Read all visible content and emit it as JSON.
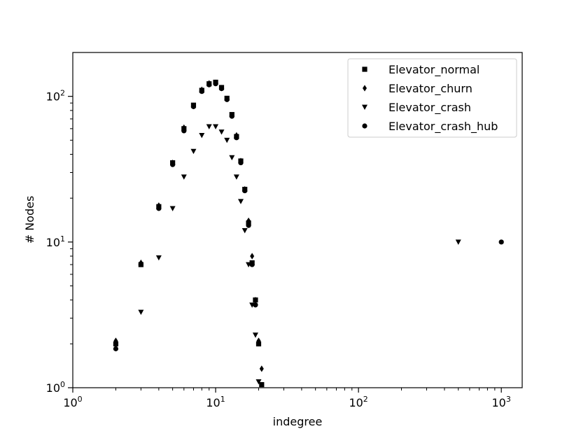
{
  "chart_data": {
    "type": "scatter",
    "xlabel": "indegree",
    "ylabel": "# Nodes",
    "xscale": "log",
    "yscale": "log",
    "xlim": [
      1,
      1400
    ],
    "ylim": [
      1,
      200
    ],
    "x_ticks": [
      {
        "value": 1,
        "base": "10",
        "exp": "0"
      },
      {
        "value": 10,
        "base": "10",
        "exp": "1"
      },
      {
        "value": 100,
        "base": "10",
        "exp": "2"
      },
      {
        "value": 1000,
        "base": "10",
        "exp": "3"
      }
    ],
    "y_ticks": [
      {
        "value": 1,
        "base": "10",
        "exp": "0"
      },
      {
        "value": 10,
        "base": "10",
        "exp": "1"
      },
      {
        "value": 100,
        "base": "10",
        "exp": "2"
      }
    ],
    "grid": false,
    "legend_position": "top-right",
    "series": [
      {
        "name": "Elevator_normal",
        "marker": "square",
        "color": "#000000",
        "points": [
          [
            2,
            2.0
          ],
          [
            3,
            7.0
          ],
          [
            4,
            17.5
          ],
          [
            5,
            35
          ],
          [
            6,
            60
          ],
          [
            7,
            87
          ],
          [
            8,
            110
          ],
          [
            9,
            122
          ],
          [
            10,
            125
          ],
          [
            11,
            115
          ],
          [
            12,
            97
          ],
          [
            13,
            75
          ],
          [
            14,
            53
          ],
          [
            15,
            36
          ],
          [
            16,
            23
          ],
          [
            17,
            13.5
          ],
          [
            18,
            7.2
          ],
          [
            19,
            4.0
          ],
          [
            20,
            2.0
          ],
          [
            21,
            1.05
          ]
        ]
      },
      {
        "name": "Elevator_churn",
        "marker": "diamond",
        "color": "#000000",
        "points": [
          [
            2,
            2.1
          ],
          [
            3,
            7.2
          ],
          [
            4,
            17.8
          ],
          [
            5,
            35
          ],
          [
            6,
            61
          ],
          [
            7,
            86
          ],
          [
            8,
            111
          ],
          [
            9,
            123
          ],
          [
            10,
            124
          ],
          [
            11,
            114
          ],
          [
            12,
            96
          ],
          [
            13,
            74
          ],
          [
            14,
            54
          ],
          [
            15,
            36
          ],
          [
            16,
            23
          ],
          [
            17,
            14
          ],
          [
            18,
            8.0
          ],
          [
            19,
            4.0
          ],
          [
            20,
            2.1
          ],
          [
            21,
            1.35
          ]
        ]
      },
      {
        "name": "Elevator_crash",
        "marker": "triangle-down",
        "color": "#000000",
        "points": [
          [
            3,
            3.3
          ],
          [
            4,
            7.8
          ],
          [
            5,
            17
          ],
          [
            6,
            28
          ],
          [
            7,
            42
          ],
          [
            8,
            54
          ],
          [
            9,
            62
          ],
          [
            10,
            62
          ],
          [
            11,
            57
          ],
          [
            12,
            50
          ],
          [
            13,
            38
          ],
          [
            14,
            28
          ],
          [
            15,
            19
          ],
          [
            16,
            12
          ],
          [
            17,
            7.0
          ],
          [
            18,
            3.7
          ],
          [
            19,
            2.3
          ],
          [
            20,
            1.1
          ],
          [
            500,
            10
          ]
        ]
      },
      {
        "name": "Elevator_crash_hub",
        "marker": "circle",
        "color": "#000000",
        "points": [
          [
            2,
            1.85
          ],
          [
            3,
            7.0
          ],
          [
            4,
            17.0
          ],
          [
            5,
            34
          ],
          [
            6,
            58
          ],
          [
            7,
            85
          ],
          [
            8,
            108
          ],
          [
            9,
            120
          ],
          [
            10,
            122
          ],
          [
            11,
            113
          ],
          [
            12,
            95
          ],
          [
            13,
            73
          ],
          [
            14,
            52
          ],
          [
            15,
            35
          ],
          [
            16,
            22.5
          ],
          [
            17,
            13
          ],
          [
            18,
            7.0
          ],
          [
            19,
            3.7
          ],
          [
            20,
            2.0
          ],
          [
            1000,
            10
          ]
        ]
      }
    ]
  }
}
